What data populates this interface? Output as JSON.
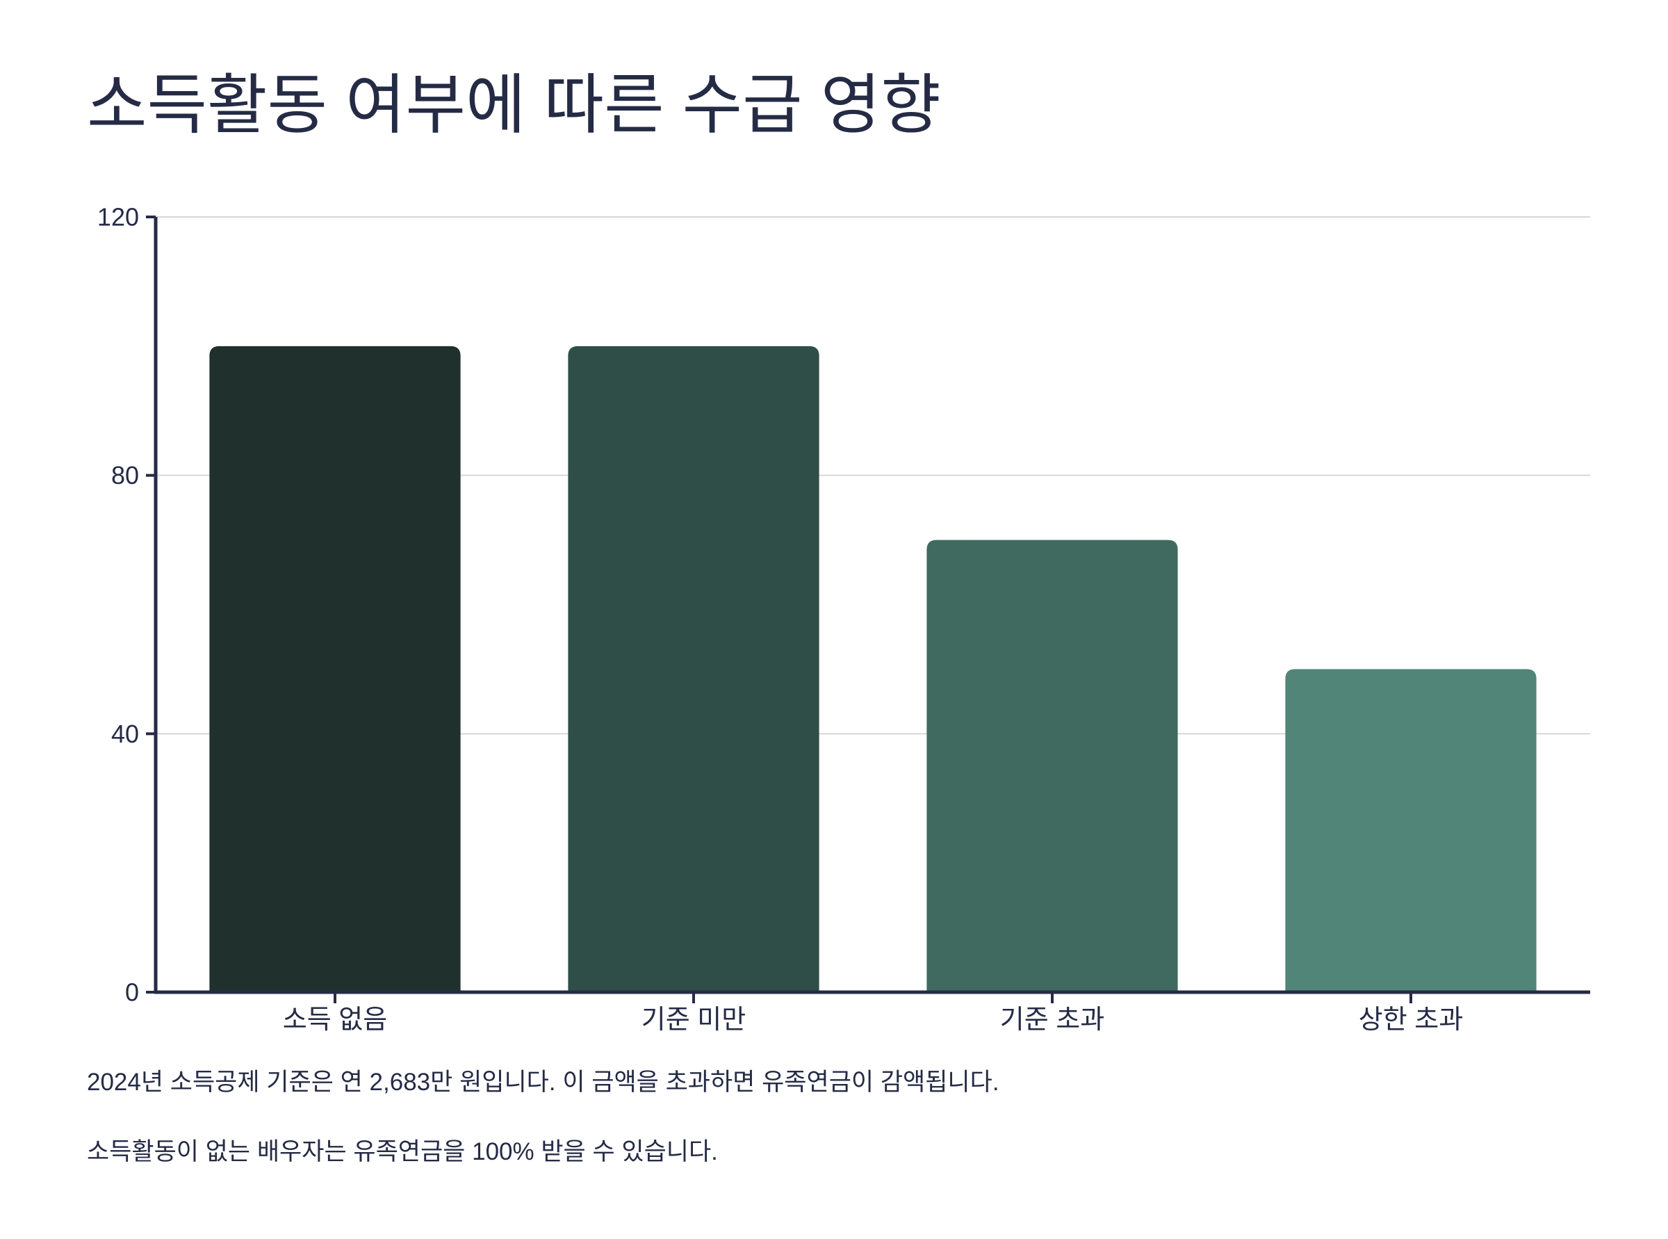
{
  "chart_data": {
    "type": "bar",
    "title": "소득활동 여부에 따른 수급 영향",
    "categories": [
      "소득 없음",
      "기준 미만",
      "기준 초과",
      "상한 초과"
    ],
    "values": [
      100,
      100,
      70,
      50
    ],
    "colors": [
      "#20302c",
      "#2f4e48",
      "#406a60",
      "#508577"
    ],
    "ylim": [
      0,
      120
    ],
    "yticks": [
      0,
      40,
      80,
      120
    ],
    "grid": true,
    "xlabel": "",
    "ylabel": ""
  },
  "notes": [
    "2024년 소득공제 기준은 연 2,683만 원입니다. 이 금액을 초과하면 유족연금이 감액됩니다.",
    "소득활동이 없는 배우자는 유족연금을 100% 받을 수 있습니다."
  ]
}
